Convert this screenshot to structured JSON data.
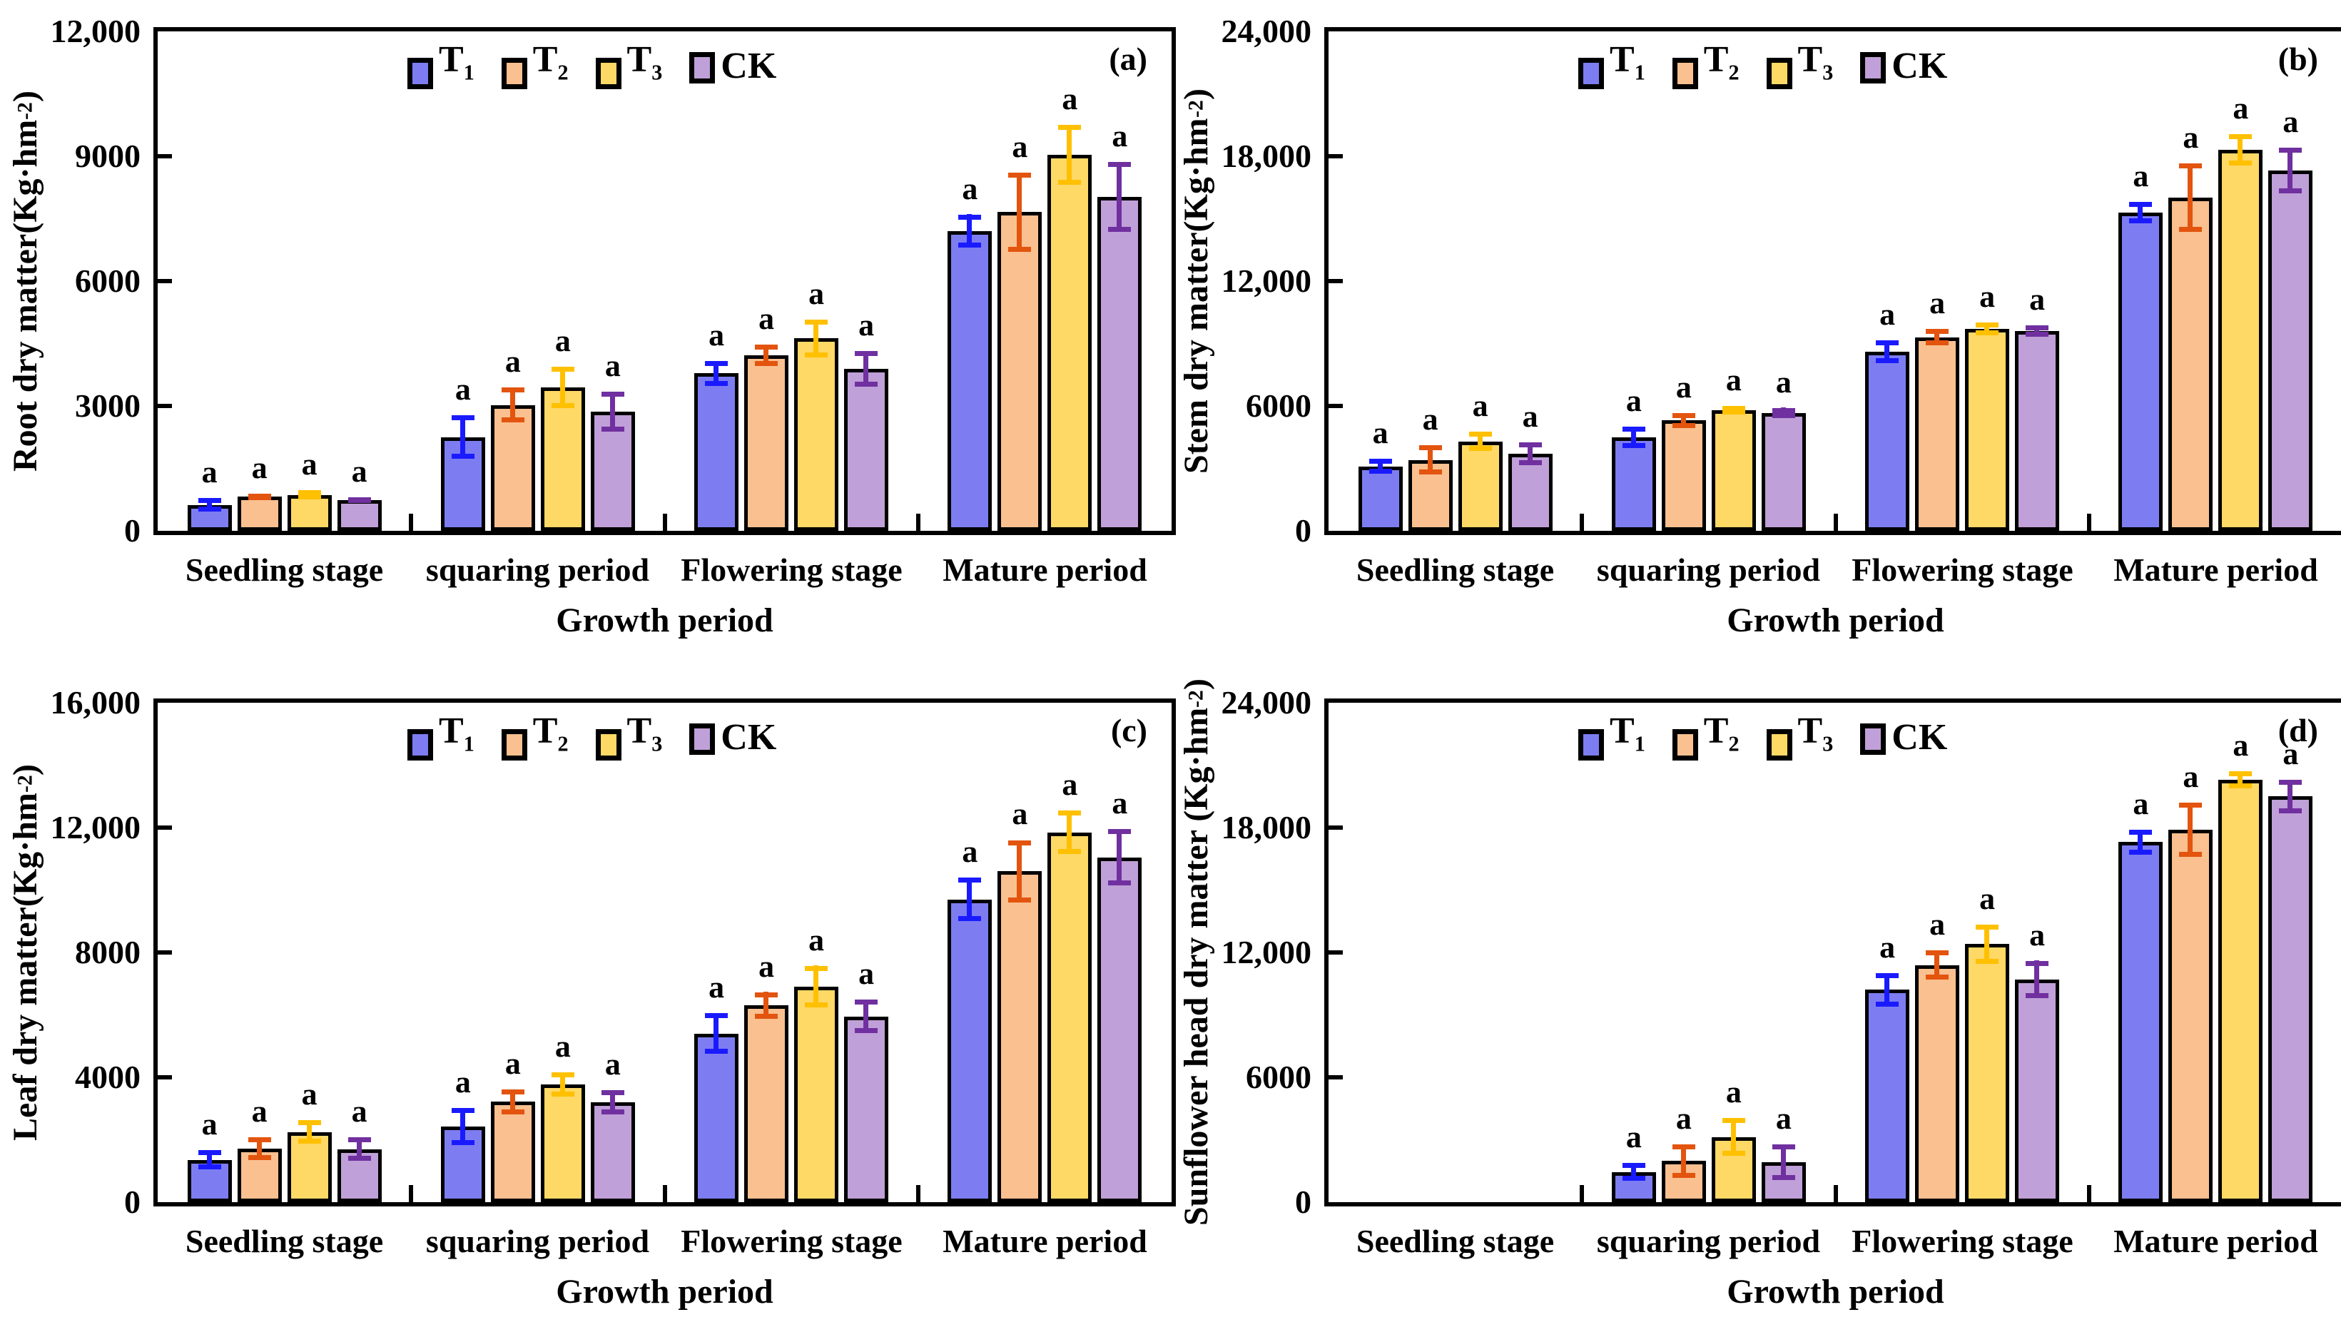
{
  "figure": {
    "background": "#ffffff",
    "x_axis_title": "Growth period",
    "sig_letter": "a",
    "categories": [
      "Seedling stage",
      "squaring period",
      "Flowering stage",
      "Mature period"
    ],
    "series_defs": [
      {
        "key": "T1",
        "label_base": "T",
        "label_sub": "1",
        "fill": "#7D7DF1",
        "error_color": "#1A1AFF"
      },
      {
        "key": "T2",
        "label_base": "T",
        "label_sub": "2",
        "fill": "#FAC090",
        "error_color": "#E3540E"
      },
      {
        "key": "T3",
        "label_base": "T",
        "label_sub": "3",
        "fill": "#FFD966",
        "error_color": "#FFC000"
      },
      {
        "key": "CK",
        "label_base": "CK",
        "label_sub": "",
        "fill": "#C0A0D8",
        "error_color": "#7030A0"
      }
    ],
    "axis_color": "#000000"
  },
  "chart_data": [
    {
      "type": "bar",
      "panel_letter": "(a)",
      "ylabel": "Root dry matter",
      "unit_prefix": "(Kg·hm",
      "unit_exponent": "-2",
      "unit_suffix": ")",
      "ylim": [
        0,
        12000
      ],
      "ytick_labels": [
        "12,000",
        "9000",
        "6000",
        "3000",
        "0"
      ],
      "categories": [
        "Seedling stage",
        "squaring period",
        "Flowering stage",
        "Mature period"
      ],
      "xlabel": "Growth period",
      "grid": false,
      "legend_position": "top-inside",
      "series": [
        {
          "name": "T1",
          "values": [
            620,
            2250,
            3780,
            7200
          ],
          "errors": [
            160,
            520,
            300,
            400
          ],
          "sig": [
            "a",
            "a",
            "a",
            "a"
          ]
        },
        {
          "name": "T2",
          "values": [
            815,
            3020,
            4220,
            7660
          ],
          "errors": [
            70,
            420,
            260,
            950
          ],
          "sig": [
            "a",
            "a",
            "a",
            "a"
          ]
        },
        {
          "name": "T3",
          "values": [
            865,
            3450,
            4620,
            9030
          ],
          "errors": [
            110,
            500,
            450,
            720
          ],
          "sig": [
            "a",
            "a",
            "a",
            "a"
          ]
        },
        {
          "name": "CK",
          "values": [
            735,
            2870,
            3890,
            8030
          ],
          "errors": [
            70,
            480,
            430,
            840
          ],
          "sig": [
            "a",
            "a",
            "a",
            "a"
          ]
        }
      ]
    },
    {
      "type": "bar",
      "panel_letter": "(b)",
      "ylabel": "Stem dry matter",
      "unit_prefix": "(Kg·hm",
      "unit_exponent": "-2",
      "unit_suffix": ")",
      "ylim": [
        0,
        24000
      ],
      "ytick_labels": [
        "24,000",
        "18,000",
        "12,000",
        "6000",
        "0"
      ],
      "categories": [
        "Seedling stage",
        "squaring period",
        "Flowering stage",
        "Mature period"
      ],
      "xlabel": "Growth period",
      "grid": false,
      "legend_position": "top-inside",
      "series": [
        {
          "name": "T1",
          "values": [
            3100,
            4500,
            8600,
            15300
          ],
          "errors": [
            350,
            520,
            550,
            520
          ],
          "sig": [
            "a",
            "a",
            "a",
            "a"
          ]
        },
        {
          "name": "T2",
          "values": [
            3400,
            5300,
            9300,
            16000
          ],
          "errors": [
            700,
            350,
            400,
            1640
          ],
          "sig": [
            "a",
            "a",
            "a",
            "a"
          ]
        },
        {
          "name": "T3",
          "values": [
            4300,
            5800,
            9700,
            18300
          ],
          "errors": [
            450,
            200,
            300,
            750
          ],
          "sig": [
            "a",
            "a",
            "a",
            "a"
          ]
        },
        {
          "name": "CK",
          "values": [
            3700,
            5650,
            9600,
            17300
          ],
          "errors": [
            550,
            250,
            270,
            1100
          ],
          "sig": [
            "a",
            "a",
            "a",
            "a"
          ]
        }
      ]
    },
    {
      "type": "bar",
      "panel_letter": "(c)",
      "ylabel": "Leaf dry matter",
      "unit_prefix": "(Kg·hm",
      "unit_exponent": "-2",
      "unit_suffix": ")",
      "ylim": [
        0,
        16000
      ],
      "ytick_labels": [
        "16,000",
        "12,000",
        "8000",
        "4000",
        "0"
      ],
      "categories": [
        "Seedling stage",
        "squaring period",
        "Flowering stage",
        "Mature period"
      ],
      "xlabel": "Growth period",
      "grid": false,
      "legend_position": "top-inside",
      "series": [
        {
          "name": "T1",
          "values": [
            1360,
            2420,
            5400,
            9700
          ],
          "errors": [
            300,
            590,
            650,
            700
          ],
          "sig": [
            "a",
            "a",
            "a",
            "a"
          ]
        },
        {
          "name": "T2",
          "values": [
            1720,
            3220,
            6300,
            10600
          ],
          "errors": [
            360,
            400,
            430,
            1000
          ],
          "sig": [
            "a",
            "a",
            "a",
            "a"
          ]
        },
        {
          "name": "T3",
          "values": [
            2250,
            3770,
            6900,
            11850
          ],
          "errors": [
            370,
            390,
            670,
            700
          ],
          "sig": [
            "a",
            "a",
            "a",
            "a"
          ]
        },
        {
          "name": "CK",
          "values": [
            1700,
            3200,
            5950,
            11050
          ],
          "errors": [
            370,
            390,
            530,
            900
          ],
          "sig": [
            "a",
            "a",
            "a",
            "a"
          ]
        }
      ]
    },
    {
      "type": "bar",
      "panel_letter": "(d)",
      "ylabel": "Sunflower head dry matter ",
      "unit_prefix": "(Kg·hm",
      "unit_exponent": "-2",
      "unit_suffix": ")",
      "ylim": [
        0,
        24000
      ],
      "ytick_labels": [
        "24,000",
        "18,000",
        "12,000",
        "6000",
        "0"
      ],
      "categories": [
        "Seedling stage",
        "squaring period",
        "Flowering stage",
        "Mature period"
      ],
      "xlabel": "Growth period",
      "grid": false,
      "legend_position": "top-inside",
      "series": [
        {
          "name": "T1",
          "values": [
            0,
            1450,
            10200,
            17300
          ],
          "errors": [
            0,
            430,
            800,
            600
          ],
          "sig": [
            "",
            "a",
            "a",
            "a"
          ]
        },
        {
          "name": "T2",
          "values": [
            0,
            1980,
            11390,
            17900
          ],
          "errors": [
            0,
            800,
            700,
            1300
          ],
          "sig": [
            "",
            "a",
            "a",
            "a"
          ]
        },
        {
          "name": "T3",
          "values": [
            0,
            3130,
            12400,
            20300
          ],
          "errors": [
            0,
            910,
            950,
            400
          ],
          "sig": [
            "",
            "a",
            "a",
            "a"
          ]
        },
        {
          "name": "CK",
          "values": [
            0,
            1910,
            10700,
            19500
          ],
          "errors": [
            0,
            860,
            900,
            800
          ],
          "sig": [
            "",
            "a",
            "a",
            "a"
          ]
        }
      ]
    }
  ]
}
